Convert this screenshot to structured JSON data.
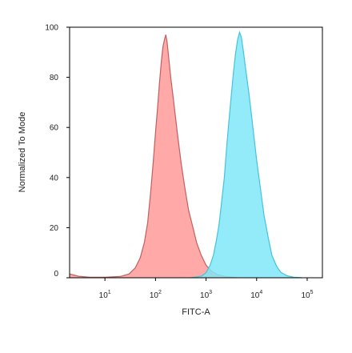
{
  "chart_data": {
    "type": "area",
    "xlabel": "FITC-A",
    "ylabel": "Normalized To Mode",
    "xscale": "log",
    "xlim": [
      2,
      200000
    ],
    "ylim": [
      0,
      100
    ],
    "y_ticks": [
      0,
      20,
      40,
      60,
      80,
      100
    ],
    "x_ticks": [
      {
        "value": 10,
        "base": "10",
        "exp": "1"
      },
      {
        "value": 100,
        "base": "10",
        "exp": "2"
      },
      {
        "value": 1000,
        "base": "10",
        "exp": "3"
      },
      {
        "value": 10000,
        "base": "10",
        "exp": "4"
      },
      {
        "value": 100000,
        "base": "10",
        "exp": "5"
      }
    ],
    "grid": false,
    "legend": "none",
    "series": [
      {
        "color": "#ff9a9a",
        "edge": "#c0605f",
        "points": [
          [
            2,
            1.5
          ],
          [
            3,
            0.6
          ],
          [
            5,
            0.2
          ],
          [
            10,
            0.2
          ],
          [
            20,
            0.5
          ],
          [
            30,
            1.5
          ],
          [
            40,
            4
          ],
          [
            50,
            8
          ],
          [
            60,
            14
          ],
          [
            70,
            22
          ],
          [
            80,
            34
          ],
          [
            90,
            46
          ],
          [
            100,
            58
          ],
          [
            110,
            68
          ],
          [
            120,
            78
          ],
          [
            130,
            86
          ],
          [
            140,
            92
          ],
          [
            150,
            95
          ],
          [
            160,
            97
          ],
          [
            170,
            94
          ],
          [
            180,
            89
          ],
          [
            200,
            80
          ],
          [
            230,
            70
          ],
          [
            270,
            58
          ],
          [
            320,
            46
          ],
          [
            380,
            36
          ],
          [
            450,
            27
          ],
          [
            550,
            20
          ],
          [
            650,
            14
          ],
          [
            800,
            9
          ],
          [
            1000,
            5
          ],
          [
            1300,
            2.5
          ],
          [
            1700,
            1.2
          ],
          [
            2500,
            0.4
          ],
          [
            4000,
            0.1
          ]
        ]
      },
      {
        "color": "#80e6f7",
        "edge": "#44c4dc",
        "points": [
          [
            500,
            0
          ],
          [
            800,
            0.6
          ],
          [
            1000,
            2
          ],
          [
            1200,
            5
          ],
          [
            1400,
            9
          ],
          [
            1600,
            15
          ],
          [
            1800,
            21
          ],
          [
            2000,
            29
          ],
          [
            2300,
            40
          ],
          [
            2600,
            54
          ],
          [
            3000,
            68
          ],
          [
            3400,
            80
          ],
          [
            3800,
            89
          ],
          [
            4200,
            95
          ],
          [
            4600,
            98
          ],
          [
            5000,
            96
          ],
          [
            5500,
            90
          ],
          [
            6000,
            84
          ],
          [
            7000,
            74
          ],
          [
            8000,
            64
          ],
          [
            9000,
            55
          ],
          [
            10000,
            47
          ],
          [
            12000,
            35
          ],
          [
            14000,
            25
          ],
          [
            17000,
            16
          ],
          [
            20000,
            9
          ],
          [
            25000,
            4.5
          ],
          [
            30000,
            2.2
          ],
          [
            40000,
            0.8
          ],
          [
            55000,
            0.2
          ],
          [
            80000,
            0
          ]
        ]
      }
    ]
  }
}
